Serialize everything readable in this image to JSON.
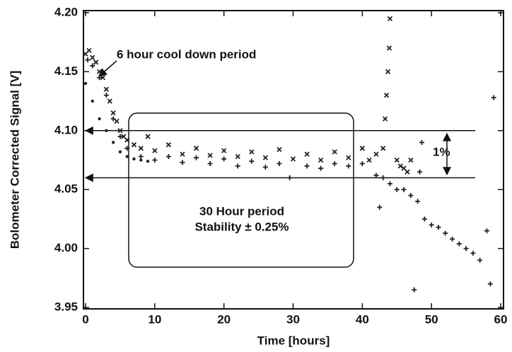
{
  "chart_data": {
    "type": "scatter",
    "xlabel": "Time [hours]",
    "ylabel": "Bolometer Corrected Signal [V]",
    "xlim": [
      0,
      60
    ],
    "ylim": [
      3.95,
      4.2
    ],
    "xticks": [
      0,
      10,
      20,
      30,
      40,
      50,
      60
    ],
    "yticks": [
      3.95,
      {
        "value": 4,
        "label": "4.00"
      },
      4.05,
      {
        "value": 4.1,
        "label": "4.10"
      },
      4.15,
      {
        "value": 4.2,
        "label": "4.20"
      }
    ],
    "reference_lines": [
      4.1,
      4.06
    ],
    "annotations": [
      "6 hour cool down period",
      "30 Hour period",
      "Stability ± 0.25%",
      "1%"
    ],
    "series": [
      {
        "marker": "x",
        "color": "#222222",
        "x": [
          0,
          0.5,
          1,
          1.5,
          2,
          2.5,
          3,
          3.5,
          4,
          4.5,
          5,
          5.5,
          6,
          7,
          8,
          9,
          10,
          12,
          14,
          16,
          18,
          20,
          22,
          24,
          26,
          28,
          30,
          32,
          34,
          36,
          38,
          40,
          41,
          42,
          43,
          43.3,
          43.5,
          43.7,
          43.9,
          44,
          45,
          45.5,
          46,
          46.5,
          47
        ],
        "values": [
          4.165,
          4.168,
          4.162,
          4.158,
          4.15,
          4.145,
          4.135,
          4.125,
          4.115,
          4.108,
          4.1,
          4.095,
          4.092,
          4.088,
          4.085,
          4.095,
          4.083,
          4.088,
          4.08,
          4.085,
          4.079,
          4.083,
          4.078,
          4.082,
          4.077,
          4.084,
          4.076,
          4.08,
          4.075,
          4.082,
          4.077,
          4.085,
          4.075,
          4.08,
          4.085,
          4.11,
          4.13,
          4.15,
          4.17,
          4.195,
          4.075,
          4.07,
          4.068,
          4.065,
          4.075
        ]
      },
      {
        "marker": "plus",
        "color": "#222222",
        "x": [
          0.3,
          1,
          2,
          3,
          4,
          5,
          6,
          8,
          10,
          12,
          14,
          16,
          18,
          20,
          22,
          24,
          26,
          28,
          29.5,
          32,
          34,
          36,
          38,
          40,
          42,
          42.5,
          43,
          44,
          45,
          46,
          47,
          47.5,
          48,
          48.3,
          48.6,
          49,
          50,
          51,
          52,
          53,
          54,
          55,
          56,
          57,
          58,
          58.5,
          59
        ],
        "values": [
          4.16,
          4.155,
          4.145,
          4.13,
          4.11,
          4.095,
          4.085,
          4.078,
          4.075,
          4.078,
          4.073,
          4.077,
          4.072,
          4.076,
          4.07,
          4.074,
          4.069,
          4.072,
          4.06,
          4.07,
          4.068,
          4.072,
          4.07,
          4.072,
          4.062,
          4.035,
          4.06,
          4.055,
          4.05,
          4.05,
          4.045,
          3.965,
          4.04,
          4.065,
          4.09,
          4.025,
          4.02,
          4.018,
          4.013,
          4.008,
          4.004,
          4,
          3.996,
          3.99,
          4.015,
          3.97,
          4.128
        ]
      },
      {
        "marker": "dot",
        "color": "#222222",
        "x": [
          0,
          1,
          2,
          3,
          4,
          5,
          6,
          7,
          8,
          9
        ],
        "values": [
          4.14,
          4.125,
          4.11,
          4.1,
          4.09,
          4.082,
          4.078,
          4.076,
          4.075,
          4.074
        ]
      }
    ]
  }
}
